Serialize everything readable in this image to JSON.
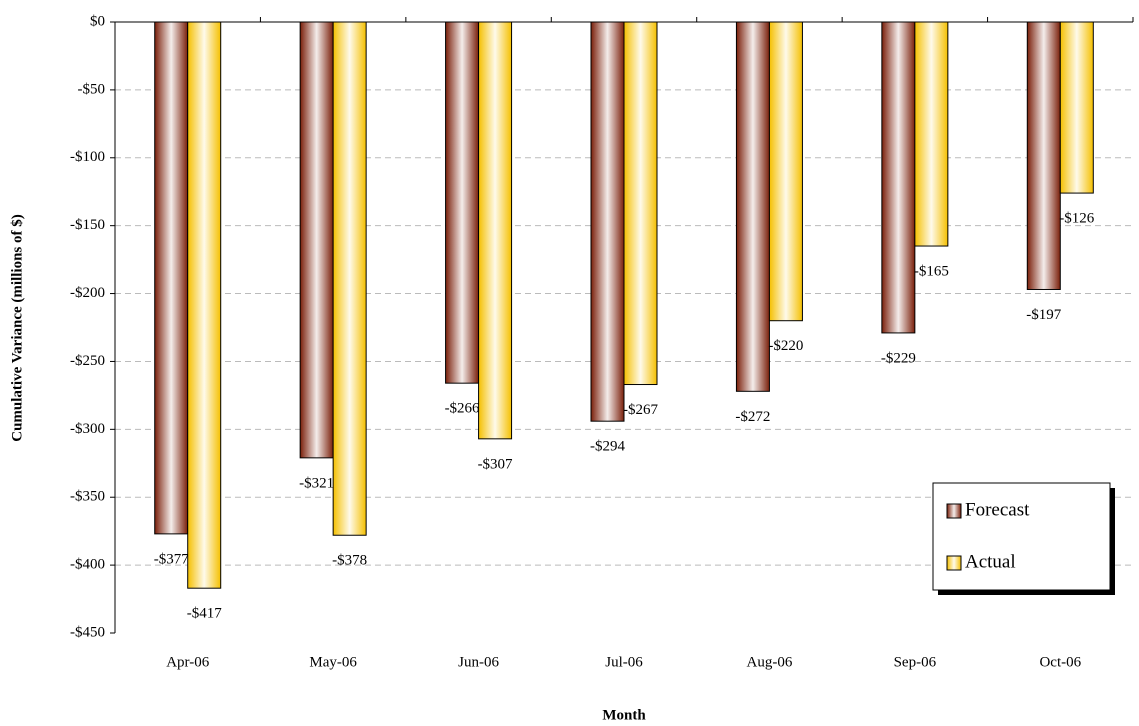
{
  "chart_data": {
    "type": "bar",
    "x_label": "Month",
    "y_label": "Cumulative Variance (millions of $)",
    "categories": [
      "Apr-06",
      "May-06",
      "Jun-06",
      "Jul-06",
      "Aug-06",
      "Sep-06",
      "Oct-06"
    ],
    "series": [
      {
        "name": "Forecast",
        "color": "#7a1f0a",
        "values": [
          -377,
          -321,
          -266,
          -294,
          -272,
          -229,
          -197
        ],
        "value_labels": [
          "-$377",
          "-$321",
          "-$266",
          "-$294",
          "-$272",
          "-$229",
          "-$197"
        ]
      },
      {
        "name": "Actual",
        "color": "#f5c000",
        "values": [
          -417,
          -378,
          -307,
          -267,
          -220,
          -165,
          -126
        ],
        "value_labels": [
          "-$417",
          "-$378",
          "-$307",
          "-$267",
          "-$220",
          "-$165",
          "-$126"
        ]
      }
    ],
    "ylim": [
      -450,
      0
    ],
    "yticks": [
      {
        "value": 0,
        "label": "$0"
      },
      {
        "value": -50,
        "label": "-$50"
      },
      {
        "value": -100,
        "label": "-$100"
      },
      {
        "value": -150,
        "label": "-$150"
      },
      {
        "value": -200,
        "label": "-$200"
      },
      {
        "value": -250,
        "label": "-$250"
      },
      {
        "value": -300,
        "label": "-$300"
      },
      {
        "value": -350,
        "label": "-$350"
      },
      {
        "value": -400,
        "label": "-$400"
      },
      {
        "value": -450,
        "label": "-$450"
      }
    ],
    "grid": true,
    "legend": "lower right"
  }
}
